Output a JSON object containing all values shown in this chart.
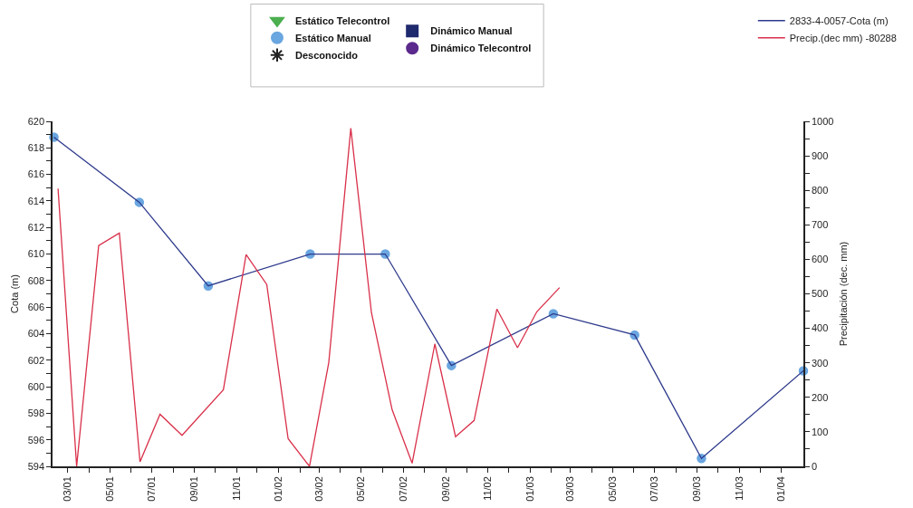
{
  "chart_data": {
    "type": "line",
    "xlabel": null,
    "ylabel": "Cota (m)",
    "y2label": "Precipitación (dec. mm)",
    "legend": "top",
    "xlim": [
      "2001-02-07",
      "2004-02-02"
    ],
    "xticks": [
      {
        "value": "2001-03-01",
        "label": "03/01"
      },
      {
        "value": "2001-04-01",
        "label": null
      },
      {
        "value": "2001-05-01",
        "label": "05/01"
      },
      {
        "value": "2001-06-01",
        "label": null
      },
      {
        "value": "2001-07-01",
        "label": "07/01"
      },
      {
        "value": "2001-08-01",
        "label": null
      },
      {
        "value": "2001-09-01",
        "label": "09/01"
      },
      {
        "value": "2001-10-01",
        "label": null
      },
      {
        "value": "2001-11-01",
        "label": "11/01"
      },
      {
        "value": "2001-12-01",
        "label": null
      },
      {
        "value": "2002-01-01",
        "label": "01/02"
      },
      {
        "value": "2002-02-01",
        "label": null
      },
      {
        "value": "2002-03-01",
        "label": "03/02"
      },
      {
        "value": "2002-04-01",
        "label": null
      },
      {
        "value": "2002-05-01",
        "label": "05/02"
      },
      {
        "value": "2002-06-01",
        "label": null
      },
      {
        "value": "2002-07-01",
        "label": "07/02"
      },
      {
        "value": "2002-08-01",
        "label": null
      },
      {
        "value": "2002-09-01",
        "label": "09/02"
      },
      {
        "value": "2002-10-01",
        "label": null
      },
      {
        "value": "2002-11-01",
        "label": "11/02"
      },
      {
        "value": "2002-12-01",
        "label": null
      },
      {
        "value": "2003-01-01",
        "label": "01/03"
      },
      {
        "value": "2003-02-01",
        "label": null
      },
      {
        "value": "2003-03-01",
        "label": "03/03"
      },
      {
        "value": "2003-04-01",
        "label": null
      },
      {
        "value": "2003-05-01",
        "label": "05/03"
      },
      {
        "value": "2003-06-01",
        "label": null
      },
      {
        "value": "2003-07-01",
        "label": "07/03"
      },
      {
        "value": "2003-08-01",
        "label": null
      },
      {
        "value": "2003-09-01",
        "label": "09/03"
      },
      {
        "value": "2003-10-01",
        "label": null
      },
      {
        "value": "2003-11-01",
        "label": "11/03"
      },
      {
        "value": "2003-12-01",
        "label": null
      },
      {
        "value": "2004-01-01",
        "label": "01/04"
      }
    ],
    "ylim": [
      594,
      620
    ],
    "yticks": [
      594,
      {
        "value": 595,
        "label": null
      },
      596,
      {
        "value": 597,
        "label": null
      },
      598,
      {
        "value": 599,
        "label": null
      },
      600,
      {
        "value": 601,
        "label": null
      },
      602,
      {
        "value": 603,
        "label": null
      },
      604,
      {
        "value": 605,
        "label": null
      },
      606,
      {
        "value": 607,
        "label": null
      },
      608,
      {
        "value": 609,
        "label": null
      },
      610,
      {
        "value": 611,
        "label": null
      },
      612,
      {
        "value": 613,
        "label": null
      },
      614,
      {
        "value": 615,
        "label": null
      },
      616,
      {
        "value": 617,
        "label": null
      },
      618,
      {
        "value": 619,
        "label": null
      },
      620
    ],
    "y2lim": [
      0,
      1000
    ],
    "y2ticks": [
      0,
      {
        "value": 50,
        "label": null
      },
      100,
      {
        "value": 150,
        "label": null
      },
      200,
      {
        "value": 250,
        "label": null
      },
      300,
      {
        "value": 350,
        "label": null
      },
      400,
      {
        "value": 450,
        "label": null
      },
      500,
      {
        "value": 550,
        "label": null
      },
      600,
      {
        "value": 650,
        "label": null
      },
      700,
      {
        "value": 750,
        "label": null
      },
      800,
      {
        "value": 850,
        "label": null
      },
      900,
      {
        "value": 950,
        "label": null
      },
      1000
    ],
    "series": [
      {
        "name": "Estático Telecontrol",
        "type": "scatter",
        "marker": "triangle",
        "color": "#4caf50"
      },
      {
        "name": "Estático Manual",
        "type": "scatter",
        "marker": "circle",
        "color": "#6aa6e0",
        "x": [
          "2001-02-09",
          "2001-06-13",
          "2001-09-21",
          "2002-02-16",
          "2002-06-05",
          "2002-09-09",
          "2003-02-04",
          "2003-06-02",
          "2003-09-07",
          "2004-02-02"
        ],
        "values": [
          618.8,
          613.9,
          607.6,
          610.0,
          610.0,
          601.6,
          605.5,
          603.9,
          594.6,
          601.2
        ]
      },
      {
        "name": "Desconocido",
        "type": "scatter",
        "marker": "star",
        "color": "#222222"
      },
      {
        "name": "Dinámico Manual",
        "type": "scatter",
        "marker": "square",
        "color": "#1f2a6e"
      },
      {
        "name": "Dinámico Telecontrol",
        "type": "scatter",
        "marker": "circle",
        "color": "#5b2a8c"
      },
      {
        "name": "2833-4-0057-Cota (m)",
        "type": "line",
        "marker": "none",
        "color": "#2e3a8c",
        "x": [
          "2001-02-09",
          "2001-06-13",
          "2001-09-21",
          "2002-02-16",
          "2002-06-05",
          "2002-09-09",
          "2003-02-04",
          "2003-06-02",
          "2003-09-07",
          "2004-02-02"
        ],
        "values": [
          618.8,
          613.9,
          607.6,
          610.0,
          610.0,
          601.6,
          605.5,
          603.9,
          594.6,
          601.2
        ]
      },
      {
        "name": "Precip.(dec mm) -80288",
        "type": "line",
        "marker": "none",
        "axis": "y2",
        "color": "#d9304a",
        "x": [
          "2001-02-15",
          "2001-03-14",
          "2001-04-15",
          "2001-05-15",
          "2001-06-14",
          "2001-07-13",
          "2001-08-14",
          "2001-10-13",
          "2001-11-15",
          "2001-12-15",
          "2002-01-15",
          "2002-02-15",
          "2002-03-15",
          "2002-04-16",
          "2002-05-16",
          "2002-06-15",
          "2002-07-14",
          "2002-08-16",
          "2002-09-15",
          "2002-10-12",
          "2002-11-14",
          "2002-12-14",
          "2003-01-11",
          "2003-02-13"
        ],
        "values": [
          805,
          0,
          640,
          676,
          13,
          151,
          90,
          222,
          614,
          527,
          80,
          0,
          301,
          980,
          445,
          164,
          9,
          355,
          86,
          133,
          456,
          344,
          448,
          518
        ]
      }
    ]
  }
}
